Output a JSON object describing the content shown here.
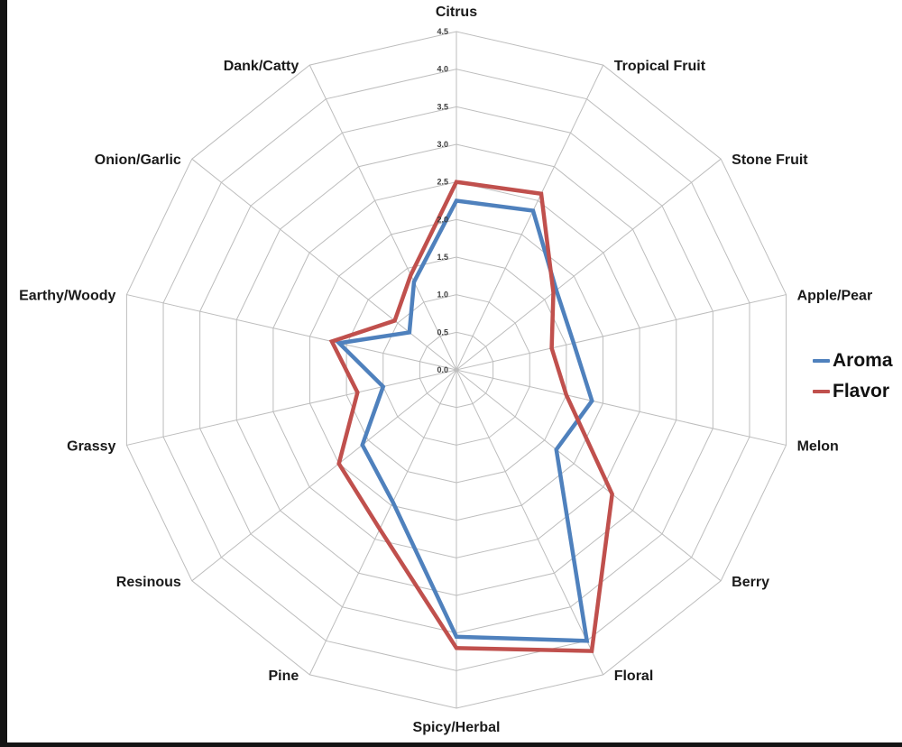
{
  "page": {
    "background_color": "#ffffff",
    "left_edge_bar_color": "#141414",
    "bottom_edge_bar_color": "#141414"
  },
  "chart_data": {
    "type": "radar",
    "title": "",
    "categories": [
      "Citrus",
      "Tropical Fruit",
      "Stone Fruit",
      "Apple/Pear",
      "Melon",
      "Berry",
      "Floral",
      "Spicy/Herbal",
      "Pine",
      "Resinous",
      "Grassy",
      "Earthy/Woody",
      "Onion/Garlic",
      "Dank/Catty"
    ],
    "series": [
      {
        "name": "Aroma",
        "color": "#4f81bd",
        "values": [
          2.25,
          2.35,
          1.7,
          1.6,
          1.85,
          1.7,
          4.0,
          3.55,
          1.95,
          1.6,
          1.0,
          1.6,
          0.8,
          1.3
        ]
      },
      {
        "name": "Flavor",
        "color": "#c0504d",
        "values": [
          2.5,
          2.6,
          1.65,
          1.3,
          1.5,
          2.65,
          4.15,
          3.7,
          2.35,
          2.0,
          1.35,
          1.7,
          1.05,
          1.4
        ]
      }
    ],
    "radial_axis": {
      "min": 0.0,
      "max": 4.5,
      "step": 0.5,
      "tick_labels": [
        "0.0",
        "0.5",
        "1.0",
        "1.5",
        "2.0",
        "2.5",
        "3.0",
        "3.5",
        "4.0",
        "4.5"
      ]
    },
    "gridline_color": "#bdbdbd",
    "axis_label_color": "#1a1a1a",
    "tick_label_color": "#3d3d3d",
    "legend_position": "right",
    "grid": true,
    "fill": "none"
  }
}
